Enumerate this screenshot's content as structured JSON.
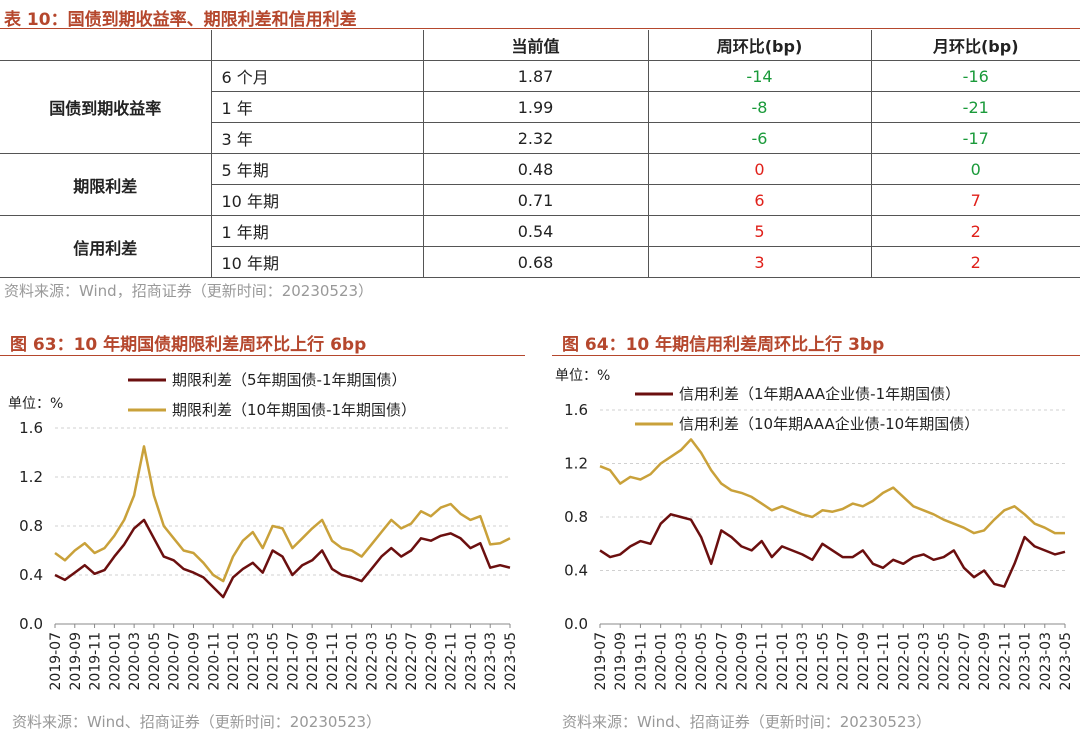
{
  "table": {
    "title": "表 10：国债到期收益率、期限利差和信用利差",
    "headers": [
      "当前值",
      "周环比(bp)",
      "月环比(bp)"
    ],
    "groups": [
      {
        "name": "国债到期收益率",
        "rows": [
          {
            "label": "6 个月",
            "current": "1.87",
            "wow": "-14",
            "mom": "-16",
            "wow_color": "#1a9a3a",
            "mom_color": "#1a9a3a"
          },
          {
            "label": "1 年",
            "current": "1.99",
            "wow": "-8",
            "mom": "-21",
            "wow_color": "#1a9a3a",
            "mom_color": "#1a9a3a"
          },
          {
            "label": "3 年",
            "current": "2.32",
            "wow": "-6",
            "mom": "-17",
            "wow_color": "#1a9a3a",
            "mom_color": "#1a9a3a"
          }
        ]
      },
      {
        "name": "期限利差",
        "rows": [
          {
            "label": "5 年期",
            "current": "0.48",
            "wow": "0",
            "mom": "0",
            "wow_color": "#e0201a",
            "mom_color": "#1a9a3a"
          },
          {
            "label": "10 年期",
            "current": "0.71",
            "wow": "6",
            "mom": "7",
            "wow_color": "#e0201a",
            "mom_color": "#e0201a"
          }
        ]
      },
      {
        "name": "信用利差",
        "rows": [
          {
            "label": "1 年期",
            "current": "0.54",
            "wow": "5",
            "mom": "2",
            "wow_color": "#e0201a",
            "mom_color": "#e0201a"
          },
          {
            "label": "10 年期",
            "current": "0.68",
            "wow": "3",
            "mom": "2",
            "wow_color": "#e0201a",
            "mom_color": "#e0201a"
          }
        ]
      }
    ],
    "source": "资料来源：Wind，招商证券（更新时间：20230523）"
  },
  "chart_data": [
    {
      "type": "line",
      "figure_title": "图 63：10 年期国债期限利差周环比上行 6bp",
      "unit_label": "单位：%",
      "ylim": [
        0,
        1.6
      ],
      "y_ticks": [
        "0.0",
        "0.4",
        "0.8",
        "1.2",
        "1.6"
      ],
      "grid": true,
      "legend_position": "top",
      "x_ticks": [
        "2019-07",
        "2019-09",
        "2019-11",
        "2020-01",
        "2020-03",
        "2020-05",
        "2020-07",
        "2020-09",
        "2020-11",
        "2021-01",
        "2021-03",
        "2021-05",
        "2021-07",
        "2021-09",
        "2021-11",
        "2022-01",
        "2022-03",
        "2022-05",
        "2022-07",
        "2022-09",
        "2022-11",
        "2023-01",
        "2023-03",
        "2023-05"
      ],
      "x_range": [
        "2019-07",
        "2023-05"
      ],
      "series": [
        {
          "name": "期限利差（5年期国债-1年期国债）",
          "color": "#6b0f0f",
          "x": [
            "2019-07",
            "2019-08",
            "2019-09",
            "2019-10",
            "2019-11",
            "2019-12",
            "2020-01",
            "2020-02",
            "2020-03",
            "2020-04",
            "2020-05",
            "2020-06",
            "2020-07",
            "2020-08",
            "2020-09",
            "2020-10",
            "2020-11",
            "2020-12",
            "2021-01",
            "2021-02",
            "2021-03",
            "2021-04",
            "2021-05",
            "2021-06",
            "2021-07",
            "2021-08",
            "2021-09",
            "2021-10",
            "2021-11",
            "2021-12",
            "2022-01",
            "2022-02",
            "2022-03",
            "2022-04",
            "2022-05",
            "2022-06",
            "2022-07",
            "2022-08",
            "2022-09",
            "2022-10",
            "2022-11",
            "2022-12",
            "2023-01",
            "2023-02",
            "2023-03",
            "2023-04",
            "2023-05"
          ],
          "values": [
            0.4,
            0.36,
            0.42,
            0.48,
            0.41,
            0.44,
            0.55,
            0.65,
            0.78,
            0.85,
            0.7,
            0.55,
            0.52,
            0.45,
            0.42,
            0.38,
            0.3,
            0.22,
            0.38,
            0.45,
            0.5,
            0.42,
            0.6,
            0.55,
            0.4,
            0.48,
            0.52,
            0.6,
            0.45,
            0.4,
            0.38,
            0.35,
            0.45,
            0.55,
            0.62,
            0.55,
            0.6,
            0.7,
            0.68,
            0.72,
            0.74,
            0.7,
            0.62,
            0.66,
            0.46,
            0.48,
            0.46
          ]
        },
        {
          "name": "期限利差（10年期国债-1年期国债）",
          "color": "#c9a13a",
          "x": [
            "2019-07",
            "2019-08",
            "2019-09",
            "2019-10",
            "2019-11",
            "2019-12",
            "2020-01",
            "2020-02",
            "2020-03",
            "2020-04",
            "2020-05",
            "2020-06",
            "2020-07",
            "2020-08",
            "2020-09",
            "2020-10",
            "2020-11",
            "2020-12",
            "2021-01",
            "2021-02",
            "2021-03",
            "2021-04",
            "2021-05",
            "2021-06",
            "2021-07",
            "2021-08",
            "2021-09",
            "2021-10",
            "2021-11",
            "2021-12",
            "2022-01",
            "2022-02",
            "2022-03",
            "2022-04",
            "2022-05",
            "2022-06",
            "2022-07",
            "2022-08",
            "2022-09",
            "2022-10",
            "2022-11",
            "2022-12",
            "2023-01",
            "2023-02",
            "2023-03",
            "2023-04",
            "2023-05"
          ],
          "values": [
            0.58,
            0.52,
            0.6,
            0.66,
            0.58,
            0.62,
            0.72,
            0.85,
            1.05,
            1.45,
            1.05,
            0.8,
            0.7,
            0.6,
            0.58,
            0.5,
            0.4,
            0.35,
            0.55,
            0.68,
            0.75,
            0.62,
            0.8,
            0.78,
            0.62,
            0.7,
            0.78,
            0.85,
            0.68,
            0.62,
            0.6,
            0.55,
            0.65,
            0.75,
            0.85,
            0.78,
            0.82,
            0.92,
            0.88,
            0.95,
            0.98,
            0.9,
            0.85,
            0.88,
            0.65,
            0.66,
            0.7
          ]
        }
      ],
      "source": "资料来源：Wind、招商证券（更新时间：20230523）"
    },
    {
      "type": "line",
      "figure_title": "图 64：10 年期信用利差周环比上行 3bp",
      "unit_label": "单位：%",
      "ylim": [
        0,
        1.6
      ],
      "y_ticks": [
        "0.0",
        "0.4",
        "0.8",
        "1.2",
        "1.6"
      ],
      "grid": true,
      "legend_position": "top",
      "x_ticks": [
        "2019-07",
        "2019-09",
        "2019-11",
        "2020-01",
        "2020-03",
        "2020-05",
        "2020-07",
        "2020-09",
        "2020-11",
        "2021-01",
        "2021-03",
        "2021-05",
        "2021-07",
        "2021-09",
        "2021-11",
        "2022-01",
        "2022-03",
        "2022-05",
        "2022-07",
        "2022-09",
        "2022-11",
        "2023-01",
        "2023-03",
        "2023-05"
      ],
      "x_range": [
        "2019-07",
        "2023-05"
      ],
      "series": [
        {
          "name": "信用利差（1年期AAA企业债-1年期国债）",
          "color": "#6b0f0f",
          "x": [
            "2019-07",
            "2019-08",
            "2019-09",
            "2019-10",
            "2019-11",
            "2019-12",
            "2020-01",
            "2020-02",
            "2020-03",
            "2020-04",
            "2020-05",
            "2020-06",
            "2020-07",
            "2020-08",
            "2020-09",
            "2020-10",
            "2020-11",
            "2020-12",
            "2021-01",
            "2021-02",
            "2021-03",
            "2021-04",
            "2021-05",
            "2021-06",
            "2021-07",
            "2021-08",
            "2021-09",
            "2021-10",
            "2021-11",
            "2021-12",
            "2022-01",
            "2022-02",
            "2022-03",
            "2022-04",
            "2022-05",
            "2022-06",
            "2022-07",
            "2022-08",
            "2022-09",
            "2022-10",
            "2022-11",
            "2022-12",
            "2023-01",
            "2023-02",
            "2023-03",
            "2023-04",
            "2023-05"
          ],
          "values": [
            0.55,
            0.5,
            0.52,
            0.58,
            0.62,
            0.6,
            0.75,
            0.82,
            0.8,
            0.78,
            0.65,
            0.45,
            0.7,
            0.65,
            0.58,
            0.55,
            0.62,
            0.5,
            0.58,
            0.55,
            0.52,
            0.48,
            0.6,
            0.55,
            0.5,
            0.5,
            0.55,
            0.45,
            0.42,
            0.48,
            0.45,
            0.5,
            0.52,
            0.48,
            0.5,
            0.55,
            0.42,
            0.35,
            0.4,
            0.3,
            0.28,
            0.45,
            0.65,
            0.58,
            0.55,
            0.52,
            0.54
          ]
        },
        {
          "name": "信用利差（10年期AAA企业债-10年期国债）",
          "color": "#c9a13a",
          "x": [
            "2019-07",
            "2019-08",
            "2019-09",
            "2019-10",
            "2019-11",
            "2019-12",
            "2020-01",
            "2020-02",
            "2020-03",
            "2020-04",
            "2020-05",
            "2020-06",
            "2020-07",
            "2020-08",
            "2020-09",
            "2020-10",
            "2020-11",
            "2020-12",
            "2021-01",
            "2021-02",
            "2021-03",
            "2021-04",
            "2021-05",
            "2021-06",
            "2021-07",
            "2021-08",
            "2021-09",
            "2021-10",
            "2021-11",
            "2021-12",
            "2022-01",
            "2022-02",
            "2022-03",
            "2022-04",
            "2022-05",
            "2022-06",
            "2022-07",
            "2022-08",
            "2022-09",
            "2022-10",
            "2022-11",
            "2022-12",
            "2023-01",
            "2023-02",
            "2023-03",
            "2023-04",
            "2023-05"
          ],
          "values": [
            1.18,
            1.15,
            1.05,
            1.1,
            1.08,
            1.12,
            1.2,
            1.25,
            1.3,
            1.38,
            1.28,
            1.15,
            1.05,
            1.0,
            0.98,
            0.95,
            0.9,
            0.85,
            0.88,
            0.85,
            0.82,
            0.8,
            0.85,
            0.84,
            0.86,
            0.9,
            0.88,
            0.92,
            0.98,
            1.02,
            0.95,
            0.88,
            0.85,
            0.82,
            0.78,
            0.75,
            0.72,
            0.68,
            0.7,
            0.78,
            0.85,
            0.88,
            0.82,
            0.75,
            0.72,
            0.68,
            0.68
          ]
        }
      ],
      "source": "资料来源：Wind、招商证券（更新时间：20230523）"
    }
  ]
}
